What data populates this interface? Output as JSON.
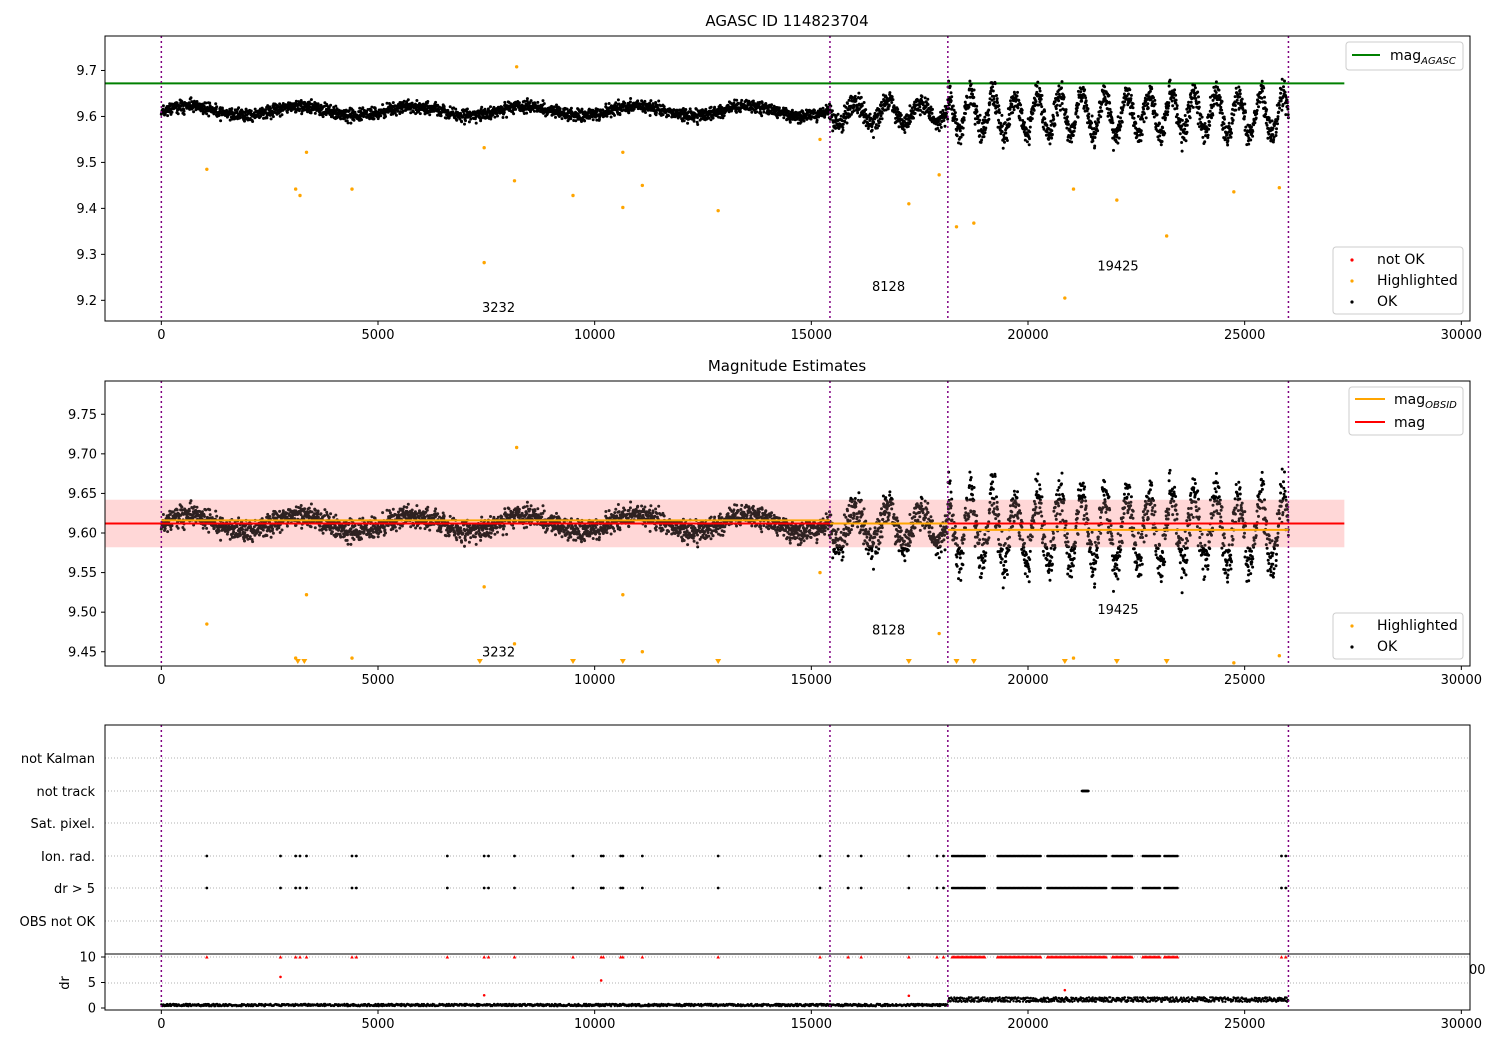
{
  "colors": {
    "ok": "#000000",
    "not_ok": "#ff0000",
    "highlighted": "#ffa500",
    "mag_agasc": "#008000",
    "mag_line": "#ff0000",
    "mag_obsid": "#ffa500",
    "band": "#ffb6b6",
    "obsid_divider": "#800080",
    "grid": "#b0b0b0"
  },
  "chart_data": [
    {
      "type": "scatter",
      "title": "AGASC ID 114823704",
      "xlim": [
        -1300,
        30200
      ],
      "ylim": [
        9.155,
        9.775
      ],
      "xticks": [
        0,
        5000,
        10000,
        15000,
        20000,
        25000,
        30000
      ],
      "yticks": [
        9.2,
        9.3,
        9.4,
        9.5,
        9.6,
        9.7
      ],
      "mag_agasc": 9.672,
      "mag_agasc_xrange": [
        -1300,
        27300
      ],
      "obsid_boundaries": [
        0,
        15430,
        18150,
        26010
      ],
      "annotations": [
        {
          "text": "3232",
          "x": 7400,
          "y": 9.175
        },
        {
          "text": "8128",
          "x": 16400,
          "y": 9.22
        },
        {
          "text": "19425",
          "x": 21600,
          "y": 9.265
        }
      ],
      "legend_top": {
        "label": "mag",
        "sub": "AGASC"
      },
      "legend_bottom": [
        "not OK",
        "Highlighted",
        "OK"
      ],
      "highlighted_outliers": [
        [
          1050,
          9.485
        ],
        [
          3100,
          9.442
        ],
        [
          3200,
          9.428
        ],
        [
          3350,
          9.522
        ],
        [
          4400,
          9.442
        ],
        [
          7450,
          9.282
        ],
        [
          7450,
          9.532
        ],
        [
          8150,
          9.46
        ],
        [
          8200,
          9.708
        ],
        [
          9500,
          9.428
        ],
        [
          10650,
          9.402
        ],
        [
          11100,
          9.45
        ],
        [
          10650,
          9.522
        ],
        [
          12850,
          9.395
        ],
        [
          15200,
          9.55
        ],
        [
          17250,
          9.41
        ],
        [
          17950,
          9.473
        ],
        [
          18350,
          9.36
        ],
        [
          18750,
          9.368
        ],
        [
          20850,
          9.205
        ],
        [
          21050,
          9.442
        ],
        [
          22050,
          9.418
        ],
        [
          23200,
          9.34
        ],
        [
          24750,
          9.436
        ],
        [
          25800,
          9.445
        ]
      ]
    },
    {
      "type": "scatter",
      "title": "Magnitude Estimates",
      "xlim": [
        -1300,
        30200
      ],
      "ylim": [
        9.432,
        9.792
      ],
      "xticks": [
        0,
        5000,
        10000,
        15000,
        20000,
        25000,
        30000
      ],
      "yticks": [
        9.45,
        9.5,
        9.55,
        9.6,
        9.65,
        9.7,
        9.75
      ],
      "mag": 9.612,
      "mag_band": [
        9.582,
        9.642
      ],
      "mag_xrange": [
        -1300,
        27300
      ],
      "mag_obsid_segments": [
        {
          "x": [
            0,
            15430
          ],
          "y": 9.616
        },
        {
          "x": [
            15430,
            18150
          ],
          "y": 9.612
        },
        {
          "x": [
            18150,
            26010
          ],
          "y": 9.604
        }
      ],
      "obsid_boundaries": [
        0,
        15430,
        18150,
        26010
      ],
      "annotations": [
        {
          "text": "3232",
          "x": 7400,
          "y": 9.444
        },
        {
          "text": "8128",
          "x": 16400,
          "y": 9.472
        },
        {
          "text": "19425",
          "x": 21600,
          "y": 9.498
        }
      ],
      "legend_top": [
        {
          "label": "mag",
          "sub": "OBSID"
        },
        {
          "label": "mag",
          "sub": ""
        }
      ],
      "legend_bottom": [
        "Highlighted",
        "OK"
      ],
      "below_range_markers_x": [
        3150,
        3300,
        7350,
        9500,
        10650,
        12850,
        17250,
        18350,
        18750,
        20850,
        22050,
        23200
      ]
    },
    {
      "type": "scatter",
      "title": "",
      "xlim": [
        -1300,
        30200
      ],
      "flag_labels": [
        "not Kalman",
        "not track",
        "Sat. pixel.",
        "Ion. rad.",
        "dr > 5",
        "OBS not OK"
      ],
      "sparse_flag_times": [
        1050,
        2750,
        3100,
        3200,
        3350,
        4400,
        4500,
        6600,
        7450,
        7550,
        8150,
        9500,
        10150,
        10200,
        10600,
        10650,
        11100,
        12850,
        15200,
        15850,
        16150,
        17250,
        17900,
        18050,
        25850,
        25950
      ],
      "dense_flag_ranges": [
        [
          18250,
          19000
        ],
        [
          19300,
          20300
        ],
        [
          20450,
          21800
        ],
        [
          21950,
          22400
        ],
        [
          22650,
          23050
        ],
        [
          23150,
          23450
        ]
      ],
      "not_track_range": [
        21250,
        21400
      ],
      "dr_subplot": {
        "ylabel": "dr",
        "ylim": [
          -0.2,
          10.6
        ],
        "yticks": [
          0,
          5,
          10
        ],
        "xticks": [
          0,
          5000,
          10000,
          15000,
          20000,
          25000,
          30000
        ],
        "right_label": "00",
        "clipped_value": 10,
        "extra_points": [
          [
            2750,
            6.1
          ],
          [
            10150,
            5.4
          ],
          [
            20850,
            3.5
          ],
          [
            7450,
            2.5
          ],
          [
            17250,
            2.4
          ]
        ]
      }
    }
  ]
}
